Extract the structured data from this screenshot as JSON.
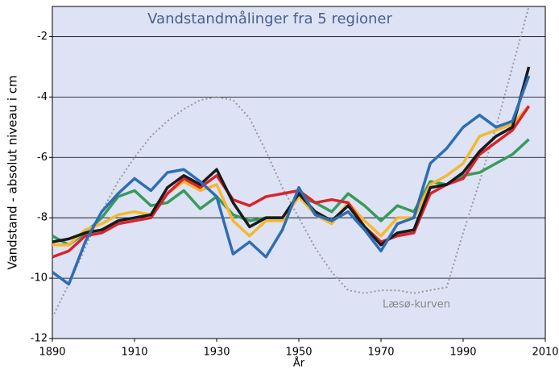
{
  "chart_data": {
    "type": "line",
    "title": "Vandstandmålinger fra 5 regioner",
    "xlabel": "År",
    "ylabel": "Vandstand - absolut niveau i cm",
    "x": [
      1890,
      1894,
      1898,
      1902,
      1906,
      1910,
      1914,
      1918,
      1922,
      1926,
      1930,
      1934,
      1938,
      1942,
      1946,
      1950,
      1954,
      1958,
      1962,
      1966,
      1970,
      1974,
      1978,
      1982,
      1986,
      1990,
      1994,
      1998,
      2002,
      2006
    ],
    "series": [
      {
        "color": "#999999",
        "dashed": true,
        "name": "Læsø-kurven",
        "values": [
          -11.3,
          -10.2,
          -9.0,
          -7.8,
          -6.8,
          -6.0,
          -5.3,
          -4.8,
          -4.4,
          -4.1,
          -4.0,
          -4.1,
          -4.7,
          -5.8,
          -7.0,
          -8.0,
          -9.0,
          -9.8,
          -10.4,
          -10.5,
          -10.4,
          -10.4,
          -10.5,
          -10.4,
          -10.3,
          -8.5,
          -6.8,
          -5.0,
          -3.0,
          -1.0
        ]
      },
      {
        "color": "#3a9a5b",
        "values": [
          -8.6,
          -8.9,
          -8.5,
          -8.0,
          -7.3,
          -7.1,
          -7.6,
          -7.5,
          -7.1,
          -7.7,
          -7.3,
          -7.9,
          -8.1,
          -8.0,
          -8.0,
          -7.3,
          -7.5,
          -7.8,
          -7.2,
          -7.6,
          -8.1,
          -7.6,
          -7.8,
          -6.8,
          -6.9,
          -6.6,
          -6.5,
          -6.2,
          -5.9,
          -5.4
        ]
      },
      {
        "color": "#f5b82e",
        "values": [
          -8.9,
          -8.9,
          -8.4,
          -8.2,
          -7.9,
          -7.8,
          -7.9,
          -7.2,
          -6.8,
          -7.1,
          -6.9,
          -8.1,
          -8.6,
          -8.1,
          -8.1,
          -7.3,
          -7.9,
          -8.2,
          -7.5,
          -8.1,
          -8.6,
          -8.0,
          -8.0,
          -6.9,
          -6.6,
          -6.2,
          -5.3,
          -5.1,
          -4.9,
          -4.3
        ]
      },
      {
        "color": "#d9232d",
        "values": [
          -9.3,
          -9.1,
          -8.6,
          -8.5,
          -8.2,
          -8.1,
          -8.0,
          -7.2,
          -6.7,
          -7.0,
          -6.6,
          -7.4,
          -7.6,
          -7.3,
          -7.2,
          -7.1,
          -7.5,
          -7.4,
          -7.5,
          -8.3,
          -8.8,
          -8.6,
          -8.5,
          -7.2,
          -6.9,
          -6.7,
          -5.9,
          -5.5,
          -5.1,
          -4.3
        ]
      },
      {
        "color": "#1a1a1a",
        "values": [
          -8.8,
          -8.7,
          -8.5,
          -8.4,
          -8.1,
          -8.0,
          -7.9,
          -7.0,
          -6.6,
          -6.9,
          -6.4,
          -7.5,
          -8.3,
          -8.0,
          -8.0,
          -7.2,
          -7.8,
          -8.1,
          -7.6,
          -8.3,
          -8.9,
          -8.5,
          -8.4,
          -7.0,
          -6.9,
          -6.5,
          -5.8,
          -5.3,
          -5.0,
          -3.0
        ]
      },
      {
        "color": "#2f6db3",
        "values": [
          -9.8,
          -10.2,
          -8.8,
          -7.8,
          -7.2,
          -6.7,
          -7.1,
          -6.5,
          -6.4,
          -6.8,
          -7.3,
          -9.2,
          -8.8,
          -9.3,
          -8.4,
          -7.0,
          -7.9,
          -8.1,
          -7.8,
          -8.4,
          -9.1,
          -8.2,
          -8.0,
          -6.2,
          -5.7,
          -5.0,
          -4.6,
          -5.0,
          -4.8,
          -3.3
        ]
      }
    ],
    "xlim": [
      1890,
      2010
    ],
    "xticks": [
      1890,
      1910,
      1930,
      1950,
      1970,
      1990,
      2010
    ],
    "ylim": [
      -12,
      -1
    ],
    "yticks": [
      -12,
      -10,
      -8,
      -6,
      -4,
      -2
    ],
    "grid": true,
    "background": "#dde3f5"
  }
}
